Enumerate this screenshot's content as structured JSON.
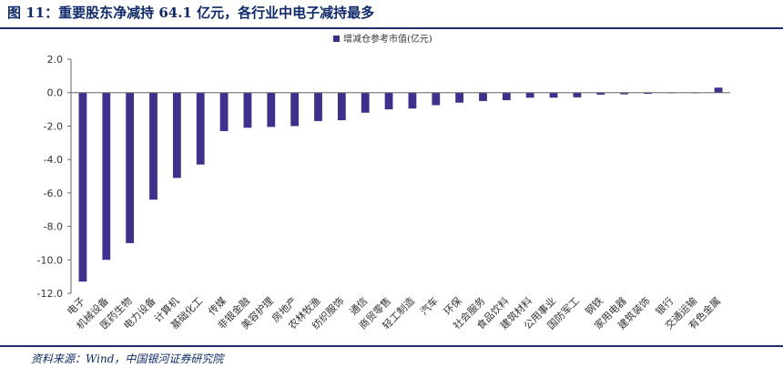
{
  "header": {
    "title": "图 11：重要股东净减持 64.1 亿元，各行业中电子减持最多"
  },
  "footer": {
    "source": "资料来源：Wind，中国银河证券研究院"
  },
  "colors": {
    "bar": "#3f2f8f",
    "axis": "#666666",
    "text": "#333333",
    "accent": "#1f2d6b"
  },
  "chart_data": {
    "type": "bar",
    "legend": {
      "label": "增减仓参考市值(亿元)",
      "position": "top-center"
    },
    "ylim": [
      -12,
      2
    ],
    "yticks": [
      "2.0",
      "0.0",
      "-2.0",
      "-4.0",
      "-6.0",
      "-8.0",
      "-10.0",
      "-12.0"
    ],
    "ytick_values": [
      2,
      0,
      -2,
      -4,
      -6,
      -8,
      -10,
      -12
    ],
    "grid": false,
    "categories": [
      "电子",
      "机械设备",
      "医药生物",
      "电力设备",
      "计算机",
      "基础化工",
      "传媒",
      "非银金融",
      "美容护理",
      "房地产",
      "农林牧渔",
      "纺织服饰",
      "通信",
      "商贸零售",
      "轻工制造",
      "汽车",
      "环保",
      "社会服务",
      "食品饮料",
      "建筑材料",
      "公用事业",
      "国防军工",
      "钢铁",
      "家用电器",
      "建筑装饰",
      "银行",
      "交通运输",
      "有色金属"
    ],
    "series": [
      {
        "values": [
          -11.3,
          -10.0,
          -9.0,
          -6.4,
          -5.1,
          -4.3,
          -2.3,
          -2.1,
          -2.05,
          -2.0,
          -1.7,
          -1.65,
          -1.2,
          -1.0,
          -0.95,
          -0.75,
          -0.6,
          -0.5,
          -0.45,
          -0.3,
          -0.3,
          -0.28,
          -0.12,
          -0.1,
          -0.07,
          -0.02,
          -0.01,
          0.3
        ]
      }
    ]
  }
}
